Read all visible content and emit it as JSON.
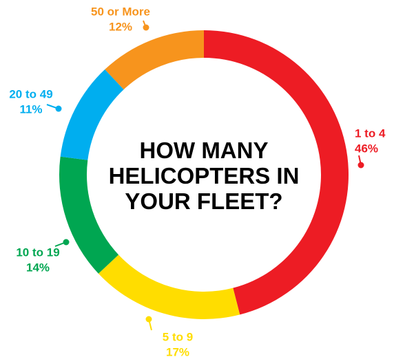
{
  "chart_data": {
    "type": "donut",
    "title": "HOW MANY HELICOPTERS IN YOUR FLEET?",
    "categories": [
      "1 to 4",
      "5 to 9",
      "10 to 19",
      "20 to 49",
      "50 or More"
    ],
    "values": [
      46,
      17,
      14,
      11,
      12
    ],
    "value_labels": [
      "46%",
      "17%",
      "14%",
      "11%",
      "12%"
    ],
    "colors": [
      "#ed1c24",
      "#ffdd00",
      "#00a651",
      "#00aeef",
      "#f7941d"
    ]
  }
}
